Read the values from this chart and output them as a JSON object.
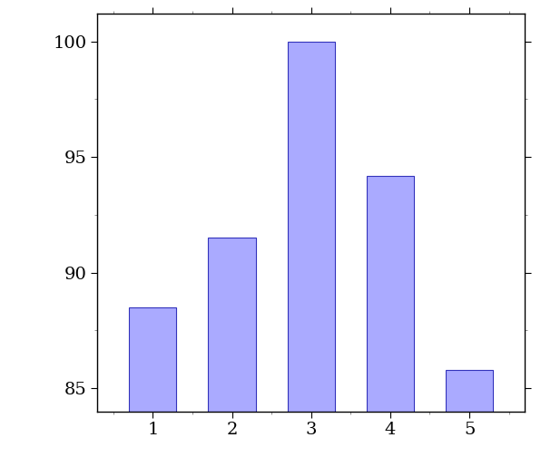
{
  "categories": [
    1,
    2,
    3,
    4,
    5
  ],
  "values": [
    88.5,
    91.5,
    100.0,
    94.2,
    85.8
  ],
  "bar_color": "#aaaaff",
  "bar_edge_color": "#3333bb",
  "bar_width": 0.6,
  "ylim": [
    84.0,
    101.2
  ],
  "yticks": [
    85,
    90,
    95,
    100
  ],
  "xlim": [
    0.3,
    5.7
  ],
  "background_color": "#ffffff",
  "font_family": "serif",
  "tick_fontsize": 14
}
